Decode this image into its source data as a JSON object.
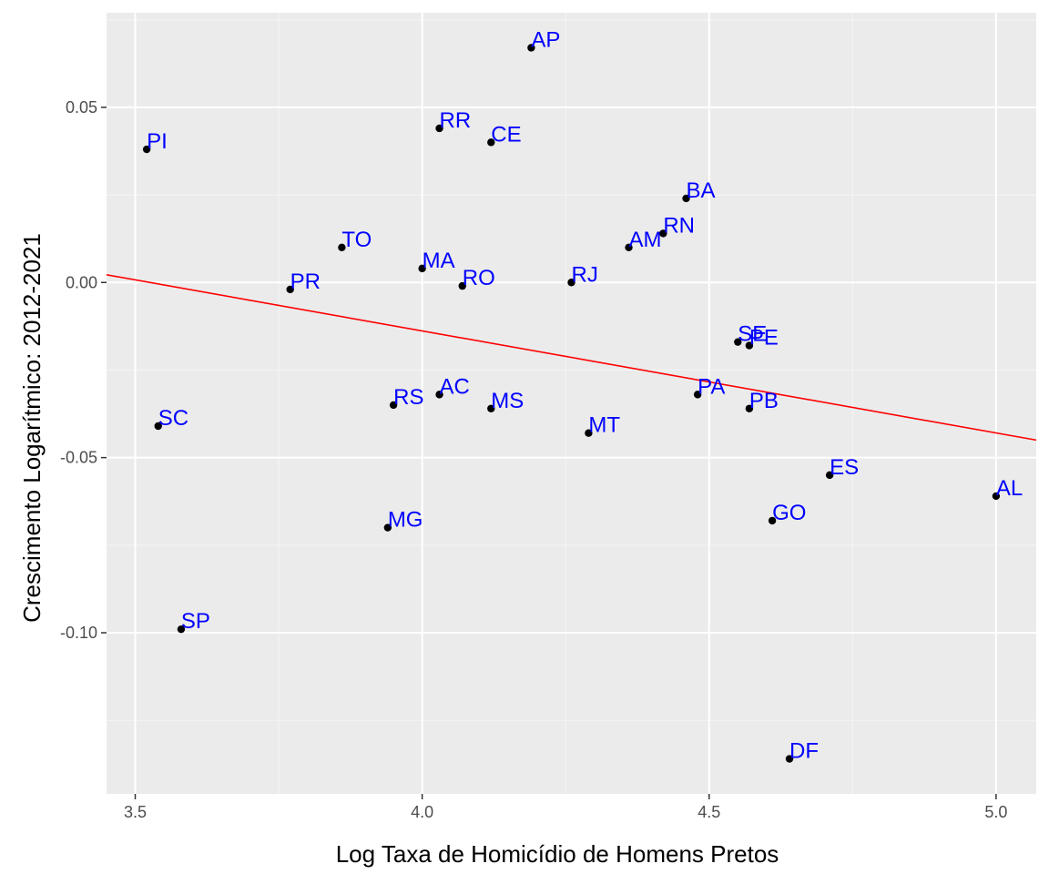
{
  "chart_data": {
    "type": "scatter",
    "title": "",
    "xlabel": "Log Taxa de Homicídio de Homens Pretos",
    "ylabel": "Crescimento Logarítmico: 2012-2021",
    "xlim": [
      3.45,
      5.07
    ],
    "ylim": [
      -0.146,
      0.077
    ],
    "x_ticks": [
      3.5,
      4.0,
      4.5,
      5.0
    ],
    "x_tick_labels": [
      "3.5",
      "4.0",
      "4.5",
      "5.0"
    ],
    "y_ticks": [
      0.05,
      0.0,
      -0.05,
      -0.1
    ],
    "y_tick_labels": [
      "0.05",
      "0.00",
      "-0.05",
      "-0.10"
    ],
    "grid": true,
    "points": [
      {
        "label": "AP",
        "x": 4.19,
        "y": 0.067
      },
      {
        "label": "PI",
        "x": 3.52,
        "y": 0.038
      },
      {
        "label": "RR",
        "x": 4.03,
        "y": 0.044
      },
      {
        "label": "CE",
        "x": 4.12,
        "y": 0.04
      },
      {
        "label": "BA",
        "x": 4.46,
        "y": 0.024
      },
      {
        "label": "RN",
        "x": 4.42,
        "y": 0.014
      },
      {
        "label": "AM",
        "x": 4.36,
        "y": 0.01
      },
      {
        "label": "TO",
        "x": 3.86,
        "y": 0.01
      },
      {
        "label": "MA",
        "x": 4.0,
        "y": 0.004
      },
      {
        "label": "PR",
        "x": 3.77,
        "y": -0.002
      },
      {
        "label": "RO",
        "x": 4.07,
        "y": -0.001
      },
      {
        "label": "RJ",
        "x": 4.26,
        "y": 0.0
      },
      {
        "label": "SE",
        "x": 4.55,
        "y": -0.017
      },
      {
        "label": "PE",
        "x": 4.57,
        "y": -0.018
      },
      {
        "label": "SC",
        "x": 3.54,
        "y": -0.041
      },
      {
        "label": "RS",
        "x": 3.95,
        "y": -0.035
      },
      {
        "label": "AC",
        "x": 4.03,
        "y": -0.032
      },
      {
        "label": "MS",
        "x": 4.12,
        "y": -0.036
      },
      {
        "label": "MT",
        "x": 4.29,
        "y": -0.043
      },
      {
        "label": "PA",
        "x": 4.48,
        "y": -0.032
      },
      {
        "label": "PB",
        "x": 4.57,
        "y": -0.036
      },
      {
        "label": "ES",
        "x": 4.71,
        "y": -0.055
      },
      {
        "label": "AL",
        "x": 5.0,
        "y": -0.061
      },
      {
        "label": "GO",
        "x": 4.61,
        "y": -0.068
      },
      {
        "label": "MG",
        "x": 3.94,
        "y": -0.07
      },
      {
        "label": "SP",
        "x": 3.58,
        "y": -0.099
      },
      {
        "label": "DF",
        "x": 4.64,
        "y": -0.136
      }
    ],
    "trend_line": {
      "x": [
        3.45,
        5.07
      ],
      "y": [
        0.0022,
        -0.045
      ]
    },
    "colors": {
      "panel_bg": "#EBEBEB",
      "grid_major": "#FFFFFF",
      "grid_minor": "#F5F5F5",
      "point": "#000000",
      "point_label": "#0000FF",
      "trend_line": "#FF0000"
    }
  }
}
